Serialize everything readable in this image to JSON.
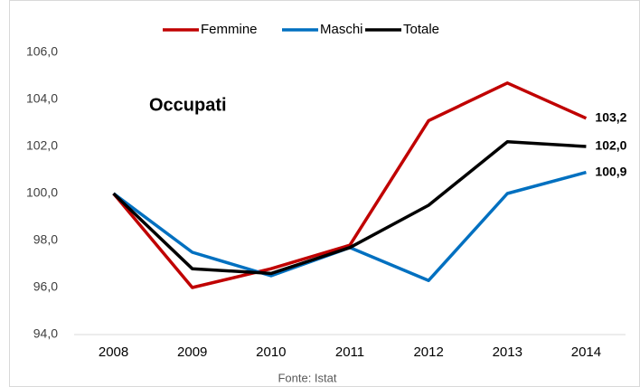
{
  "chart_data": {
    "type": "line",
    "annotation": "Occupati",
    "source": "Fonte: Istat",
    "categories": [
      "2008",
      "2009",
      "2010",
      "2011",
      "2012",
      "2013",
      "2014"
    ],
    "series": [
      {
        "name": "Femmine",
        "color": "#c00000",
        "values": [
          100.0,
          96.0,
          96.8,
          97.8,
          103.1,
          104.7,
          103.2
        ],
        "end_label": "103,2"
      },
      {
        "name": "Maschi",
        "color": "#0070c0",
        "values": [
          100.0,
          97.5,
          96.5,
          97.7,
          96.3,
          100.0,
          100.9
        ],
        "end_label": "100,9"
      },
      {
        "name": "Totale",
        "color": "#000000",
        "values": [
          100.0,
          96.8,
          96.6,
          97.7,
          99.5,
          102.2,
          102.0
        ],
        "end_label": "102,0"
      }
    ],
    "ylim": [
      94,
      106
    ],
    "yticks": [
      {
        "value": 94,
        "label": "94,0"
      },
      {
        "value": 96,
        "label": "96,0"
      },
      {
        "value": 98,
        "label": "98,0"
      },
      {
        "value": 100,
        "label": "100,0"
      },
      {
        "value": 102,
        "label": "102,0"
      },
      {
        "value": 104,
        "label": "104,0"
      },
      {
        "value": 106,
        "label": "106,0"
      }
    ],
    "legend": "top",
    "grid": false
  }
}
